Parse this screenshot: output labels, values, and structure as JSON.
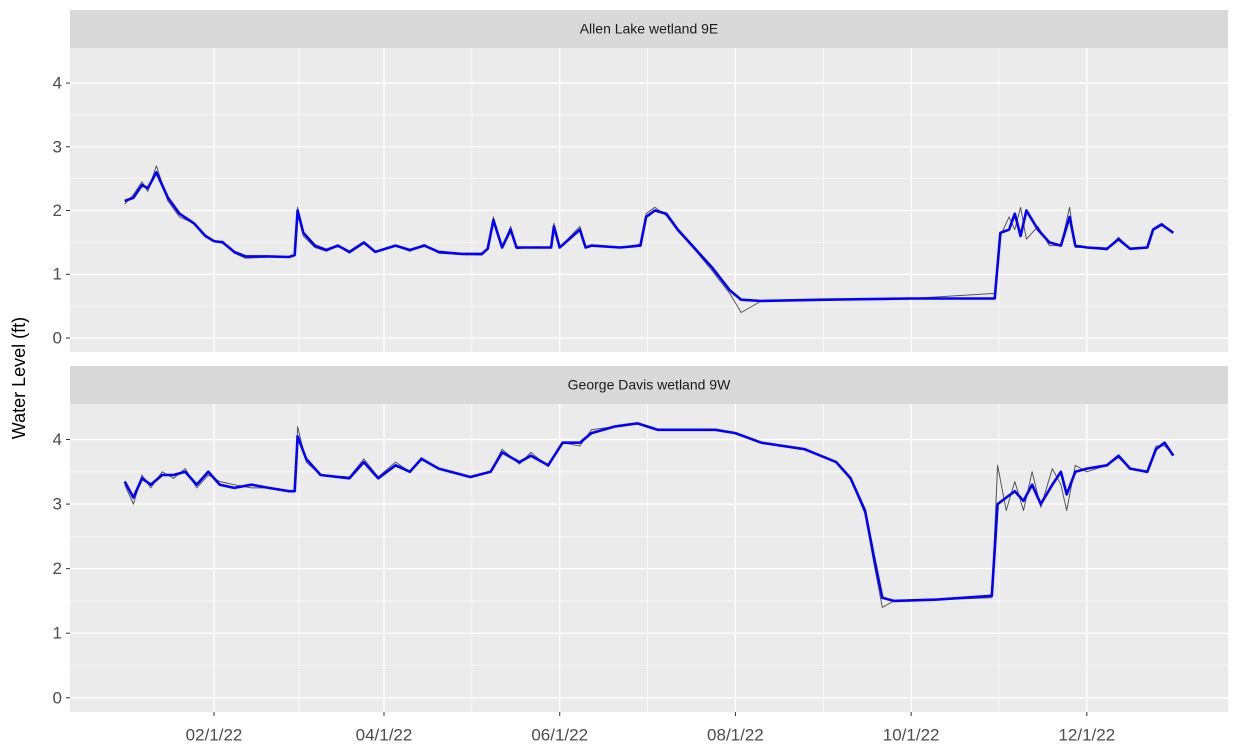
{
  "y_label": "Water Level (ft)",
  "chart_data": [
    {
      "type": "line",
      "title": "Allen Lake wetland 9E",
      "xlim": [
        "2021-12-13",
        "2023-01-19"
      ],
      "xticks": [
        {
          "value": "2022-02-01",
          "label": "02/1/22"
        },
        {
          "value": "2022-04-01",
          "label": "04/1/22"
        },
        {
          "value": "2022-06-01",
          "label": "06/1/22"
        },
        {
          "value": "2022-08-01",
          "label": "08/1/22"
        },
        {
          "value": "2022-10-01",
          "label": "10/1/22"
        },
        {
          "value": "2022-12-01",
          "label": "12/1/22"
        }
      ],
      "ylim": [
        -0.22,
        4.55
      ],
      "yticks": [
        0,
        1,
        2,
        3,
        4
      ],
      "grid": true,
      "x": [
        "2022-01-01",
        "2022-01-04",
        "2022-01-07",
        "2022-01-09",
        "2022-01-12",
        "2022-01-16",
        "2022-01-20",
        "2022-01-25",
        "2022-01-29",
        "2022-02-01",
        "2022-02-04",
        "2022-02-08",
        "2022-02-12",
        "2022-02-20",
        "2022-02-27",
        "2022-03-01",
        "2022-03-02",
        "2022-03-04",
        "2022-03-08",
        "2022-03-12",
        "2022-03-16",
        "2022-03-20",
        "2022-03-25",
        "2022-03-29",
        "2022-04-05",
        "2022-04-10",
        "2022-04-15",
        "2022-04-20",
        "2022-04-28",
        "2022-05-05",
        "2022-05-07",
        "2022-05-09",
        "2022-05-12",
        "2022-05-15",
        "2022-05-17",
        "2022-05-24",
        "2022-05-29",
        "2022-05-30",
        "2022-06-01",
        "2022-06-08",
        "2022-06-10",
        "2022-06-12",
        "2022-06-22",
        "2022-06-29",
        "2022-07-01",
        "2022-07-04",
        "2022-07-08",
        "2022-07-12",
        "2022-07-18",
        "2022-07-24",
        "2022-07-30",
        "2022-08-03",
        "2022-08-10",
        "2022-09-01",
        "2022-10-01",
        "2022-10-30",
        "2022-11-01",
        "2022-11-04",
        "2022-11-06",
        "2022-11-08",
        "2022-11-10",
        "2022-11-14",
        "2022-11-18",
        "2022-11-22",
        "2022-11-25",
        "2022-11-27",
        "2022-12-01",
        "2022-12-08",
        "2022-12-12",
        "2022-12-16",
        "2022-12-22",
        "2022-12-24",
        "2022-12-27",
        "2022-12-31"
      ],
      "series": [
        {
          "color": "#555555",
          "values": [
            2.1,
            2.25,
            2.45,
            2.3,
            2.7,
            2.15,
            1.9,
            1.8,
            1.62,
            1.52,
            1.52,
            1.33,
            1.25,
            1.27,
            1.28,
            1.3,
            2.05,
            1.6,
            1.42,
            1.36,
            1.45,
            1.33,
            1.48,
            1.36,
            1.45,
            1.36,
            1.47,
            1.33,
            1.31,
            1.3,
            1.4,
            1.9,
            1.42,
            1.75,
            1.4,
            1.43,
            1.42,
            1.8,
            1.42,
            1.75,
            1.42,
            1.45,
            1.42,
            1.47,
            1.95,
            2.05,
            1.92,
            1.68,
            1.38,
            1.05,
            0.7,
            0.4,
            0.58,
            0.6,
            0.62,
            0.7,
            1.6,
            1.9,
            1.7,
            2.05,
            1.55,
            1.75,
            1.45,
            1.45,
            2.05,
            1.42,
            1.42,
            1.38,
            1.58,
            1.4,
            1.42,
            1.72,
            1.8,
            1.65
          ]
        },
        {
          "color": "#0000ff",
          "values": [
            2.15,
            2.2,
            2.4,
            2.35,
            2.6,
            2.2,
            1.95,
            1.8,
            1.6,
            1.52,
            1.5,
            1.35,
            1.28,
            1.28,
            1.27,
            1.3,
            2.0,
            1.65,
            1.45,
            1.38,
            1.45,
            1.35,
            1.5,
            1.35,
            1.45,
            1.38,
            1.45,
            1.35,
            1.32,
            1.32,
            1.4,
            1.85,
            1.42,
            1.7,
            1.42,
            1.42,
            1.42,
            1.75,
            1.42,
            1.7,
            1.42,
            1.45,
            1.42,
            1.45,
            1.9,
            2.0,
            1.95,
            1.7,
            1.4,
            1.1,
            0.75,
            0.6,
            0.58,
            0.6,
            0.62,
            0.62,
            1.65,
            1.7,
            1.95,
            1.6,
            2.0,
            1.7,
            1.5,
            1.45,
            1.9,
            1.45,
            1.42,
            1.4,
            1.55,
            1.4,
            1.42,
            1.7,
            1.78,
            1.65
          ]
        }
      ]
    },
    {
      "type": "line",
      "title": "George Davis wetland 9W",
      "xlim": [
        "2021-12-13",
        "2023-01-19"
      ],
      "xticks": [
        {
          "value": "2022-02-01",
          "label": "02/1/22"
        },
        {
          "value": "2022-04-01",
          "label": "04/1/22"
        },
        {
          "value": "2022-06-01",
          "label": "06/1/22"
        },
        {
          "value": "2022-08-01",
          "label": "08/1/22"
        },
        {
          "value": "2022-10-01",
          "label": "10/1/22"
        },
        {
          "value": "2022-12-01",
          "label": "12/1/22"
        }
      ],
      "ylim": [
        -0.22,
        4.55
      ],
      "yticks": [
        0,
        1,
        2,
        3,
        4
      ],
      "grid": true,
      "x": [
        "2022-01-01",
        "2022-01-04",
        "2022-01-07",
        "2022-01-10",
        "2022-01-14",
        "2022-01-18",
        "2022-01-22",
        "2022-01-26",
        "2022-01-30",
        "2022-02-03",
        "2022-02-08",
        "2022-02-14",
        "2022-02-20",
        "2022-02-27",
        "2022-03-01",
        "2022-03-02",
        "2022-03-05",
        "2022-03-10",
        "2022-03-20",
        "2022-03-25",
        "2022-03-30",
        "2022-04-05",
        "2022-04-10",
        "2022-04-14",
        "2022-04-20",
        "2022-05-01",
        "2022-05-08",
        "2022-05-12",
        "2022-05-18",
        "2022-05-22",
        "2022-05-28",
        "2022-06-02",
        "2022-06-08",
        "2022-06-12",
        "2022-06-20",
        "2022-06-28",
        "2022-07-05",
        "2022-07-25",
        "2022-08-01",
        "2022-08-10",
        "2022-08-25",
        "2022-09-05",
        "2022-09-10",
        "2022-09-15",
        "2022-09-18",
        "2022-09-21",
        "2022-09-25",
        "2022-10-10",
        "2022-10-29",
        "2022-10-31",
        "2022-11-03",
        "2022-11-06",
        "2022-11-09",
        "2022-11-12",
        "2022-11-15",
        "2022-11-19",
        "2022-11-22",
        "2022-11-24",
        "2022-11-27",
        "2022-12-01",
        "2022-12-08",
        "2022-12-12",
        "2022-12-16",
        "2022-12-22",
        "2022-12-25",
        "2022-12-28",
        "2022-12-31"
      ],
      "series": [
        {
          "color": "#555555",
          "values": [
            3.3,
            3.0,
            3.45,
            3.25,
            3.5,
            3.4,
            3.55,
            3.25,
            3.45,
            3.35,
            3.3,
            3.25,
            3.25,
            3.2,
            3.2,
            4.2,
            3.65,
            3.45,
            3.42,
            3.7,
            3.42,
            3.65,
            3.5,
            3.72,
            3.55,
            3.42,
            3.5,
            3.85,
            3.62,
            3.8,
            3.58,
            3.95,
            3.9,
            4.15,
            4.2,
            4.25,
            4.15,
            4.15,
            4.1,
            3.95,
            3.85,
            3.65,
            3.4,
            2.85,
            2.1,
            1.4,
            1.5,
            1.52,
            1.55,
            3.6,
            2.9,
            3.35,
            2.9,
            3.5,
            2.95,
            3.55,
            3.3,
            2.9,
            3.6,
            3.5,
            3.6,
            3.72,
            3.55,
            3.5,
            3.9,
            3.9,
            3.78
          ]
        },
        {
          "color": "#0000ff",
          "values": [
            3.35,
            3.1,
            3.4,
            3.3,
            3.45,
            3.45,
            3.5,
            3.3,
            3.5,
            3.3,
            3.25,
            3.3,
            3.25,
            3.2,
            3.2,
            4.05,
            3.7,
            3.45,
            3.4,
            3.65,
            3.4,
            3.6,
            3.5,
            3.7,
            3.55,
            3.42,
            3.5,
            3.8,
            3.65,
            3.75,
            3.6,
            3.95,
            3.95,
            4.1,
            4.2,
            4.25,
            4.15,
            4.15,
            4.1,
            3.95,
            3.85,
            3.65,
            3.4,
            2.9,
            2.2,
            1.55,
            1.5,
            1.52,
            1.58,
            3.0,
            3.1,
            3.2,
            3.05,
            3.3,
            3.0,
            3.3,
            3.5,
            3.15,
            3.5,
            3.55,
            3.6,
            3.75,
            3.55,
            3.5,
            3.85,
            3.95,
            3.75
          ]
        }
      ]
    }
  ]
}
